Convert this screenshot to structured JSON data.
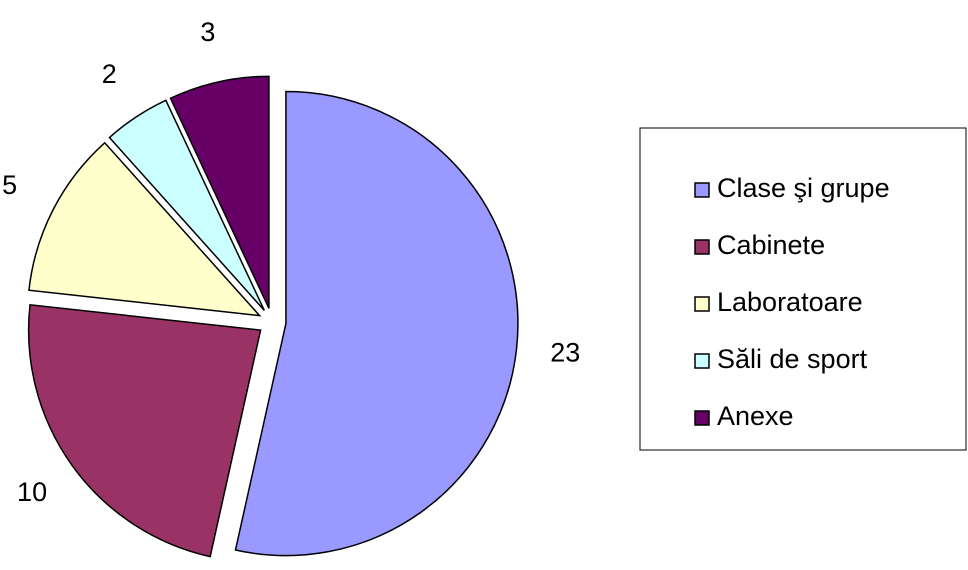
{
  "chart_data": {
    "type": "pie",
    "categories": [
      "Clase şi grupe",
      "Cabinete",
      "Laboratoare",
      "Săli de sport",
      "Anexe"
    ],
    "values": [
      23,
      10,
      5,
      2,
      3
    ],
    "colors": [
      "#9999ff",
      "#993366",
      "#ffffcc",
      "#ccffff",
      "#660066"
    ],
    "legend": "right"
  }
}
